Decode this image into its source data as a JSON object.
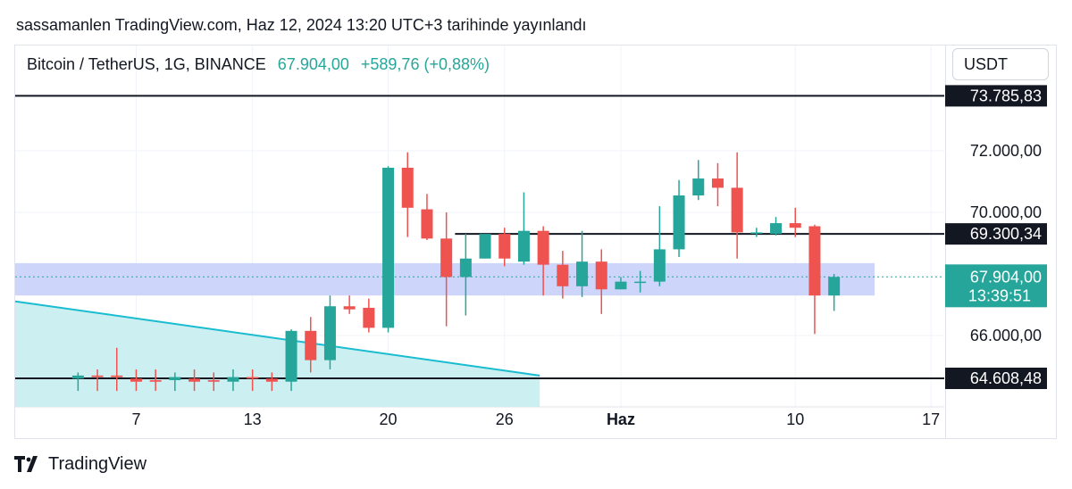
{
  "header": {
    "published_text": "sassamanlen TradingView.com, Haz 12, 2024 13:20 UTC+3 tarihinde yayınlandı"
  },
  "legend": {
    "symbol": "Bitcoin / TetherUS, 1G, BINANCE",
    "last": "67.904,00",
    "change": "+589,76 (+0,88%)"
  },
  "currency_button": "USDT",
  "footer": {
    "brand": "TradingView"
  },
  "colors": {
    "up": "#26a69a",
    "down": "#ef5350",
    "zone": "#c5cefa",
    "triangle": "#c7eef0",
    "triangle_line": "#19bcd0",
    "text": "#131722"
  },
  "chart_data": {
    "type": "candlestick",
    "x_tick_labels": [
      "7",
      "13",
      "20",
      "26",
      "Haz",
      "10",
      "17"
    ],
    "y_tick_labels": [
      "72.000,00",
      "70.000,00",
      "66.000,00"
    ],
    "y_ticks": [
      72000,
      70000,
      66000
    ],
    "ylim": [
      64200,
      74400
    ],
    "horizontal_levels": [
      {
        "value": 73785.83,
        "label": "73.785,83"
      },
      {
        "value": 69300.34,
        "label": "69.300,34"
      },
      {
        "value": 64608.48,
        "label": "64.608,48"
      }
    ],
    "last_price": {
      "value": 67904.0,
      "label": "67.904,00",
      "countdown": "13:39:51"
    },
    "zone": {
      "from": 67300,
      "to": 68350
    },
    "triangle_line": {
      "start": {
        "date": "2024-05-04",
        "value": 67400
      },
      "end": {
        "date": "2024-05-28",
        "value": 64700
      }
    },
    "candles": [
      {
        "date": "2024-05-04",
        "o": 64600,
        "h": 64800,
        "l": 64200,
        "c": 64700
      },
      {
        "date": "2024-05-05",
        "o": 64700,
        "h": 64900,
        "l": 64200,
        "c": 64650
      },
      {
        "date": "2024-05-06",
        "o": 64700,
        "h": 65600,
        "l": 64200,
        "c": 64650
      },
      {
        "date": "2024-05-07",
        "o": 64600,
        "h": 64900,
        "l": 64200,
        "c": 64500
      },
      {
        "date": "2024-05-08",
        "o": 64550,
        "h": 64900,
        "l": 64200,
        "c": 64500
      },
      {
        "date": "2024-05-09",
        "o": 64550,
        "h": 64800,
        "l": 64200,
        "c": 64650
      },
      {
        "date": "2024-05-10",
        "o": 64600,
        "h": 64900,
        "l": 64200,
        "c": 64500
      },
      {
        "date": "2024-05-11",
        "o": 64550,
        "h": 64800,
        "l": 64200,
        "c": 64500
      },
      {
        "date": "2024-05-12",
        "o": 64500,
        "h": 64900,
        "l": 64200,
        "c": 64650
      },
      {
        "date": "2024-05-13",
        "o": 64650,
        "h": 64900,
        "l": 64200,
        "c": 64600
      },
      {
        "date": "2024-05-14",
        "o": 64600,
        "h": 64800,
        "l": 64200,
        "c": 64500
      },
      {
        "date": "2024-05-15",
        "o": 64500,
        "h": 66200,
        "l": 64200,
        "c": 66150
      },
      {
        "date": "2024-05-16",
        "o": 66150,
        "h": 66600,
        "l": 64800,
        "c": 65200
      },
      {
        "date": "2024-05-17",
        "o": 65200,
        "h": 67300,
        "l": 64900,
        "c": 66950
      },
      {
        "date": "2024-05-18",
        "o": 66950,
        "h": 67300,
        "l": 66700,
        "c": 66850
      },
      {
        "date": "2024-05-19",
        "o": 66900,
        "h": 67200,
        "l": 66100,
        "c": 66250
      },
      {
        "date": "2024-05-20",
        "o": 66250,
        "h": 71500,
        "l": 66100,
        "c": 71450
      },
      {
        "date": "2024-05-21",
        "o": 71450,
        "h": 71950,
        "l": 69200,
        "c": 70150
      },
      {
        "date": "2024-05-22",
        "o": 70100,
        "h": 70600,
        "l": 69100,
        "c": 69150
      },
      {
        "date": "2024-05-23",
        "o": 69150,
        "h": 70000,
        "l": 66300,
        "c": 67900
      },
      {
        "date": "2024-05-24",
        "o": 67900,
        "h": 69300,
        "l": 66650,
        "c": 68500
      },
      {
        "date": "2024-05-25",
        "o": 68500,
        "h": 69250,
        "l": 68500,
        "c": 69300
      },
      {
        "date": "2024-05-26",
        "o": 69300,
        "h": 69500,
        "l": 68250,
        "c": 68500
      },
      {
        "date": "2024-05-27",
        "o": 68400,
        "h": 70650,
        "l": 68300,
        "c": 69400
      },
      {
        "date": "2024-05-28",
        "o": 69400,
        "h": 69550,
        "l": 67300,
        "c": 68300
      },
      {
        "date": "2024-05-29",
        "o": 68300,
        "h": 68750,
        "l": 67200,
        "c": 67600
      },
      {
        "date": "2024-05-30",
        "o": 67600,
        "h": 69400,
        "l": 67250,
        "c": 68400
      },
      {
        "date": "2024-05-31",
        "o": 68400,
        "h": 68800,
        "l": 66700,
        "c": 67500
      },
      {
        "date": "2024-06-01",
        "o": 67500,
        "h": 67900,
        "l": 67500,
        "c": 67750
      },
      {
        "date": "2024-06-02",
        "o": 67750,
        "h": 68100,
        "l": 67400,
        "c": 67750
      },
      {
        "date": "2024-06-03",
        "o": 67750,
        "h": 70200,
        "l": 67600,
        "c": 68800
      },
      {
        "date": "2024-06-04",
        "o": 68800,
        "h": 71050,
        "l": 68550,
        "c": 70550
      },
      {
        "date": "2024-06-05",
        "o": 70550,
        "h": 71700,
        "l": 70400,
        "c": 71100
      },
      {
        "date": "2024-06-06",
        "o": 71100,
        "h": 71600,
        "l": 70200,
        "c": 70800
      },
      {
        "date": "2024-06-07",
        "o": 70800,
        "h": 71950,
        "l": 68500,
        "c": 69350
      },
      {
        "date": "2024-06-08",
        "o": 69350,
        "h": 69500,
        "l": 69200,
        "c": 69350
      },
      {
        "date": "2024-06-09",
        "o": 69300,
        "h": 69850,
        "l": 69250,
        "c": 69650
      },
      {
        "date": "2024-06-10",
        "o": 69650,
        "h": 70150,
        "l": 69200,
        "c": 69500
      },
      {
        "date": "2024-06-11",
        "o": 69550,
        "h": 69600,
        "l": 66050,
        "c": 67300
      },
      {
        "date": "2024-06-12",
        "o": 67300,
        "h": 68000,
        "l": 66800,
        "c": 67904
      }
    ]
  }
}
